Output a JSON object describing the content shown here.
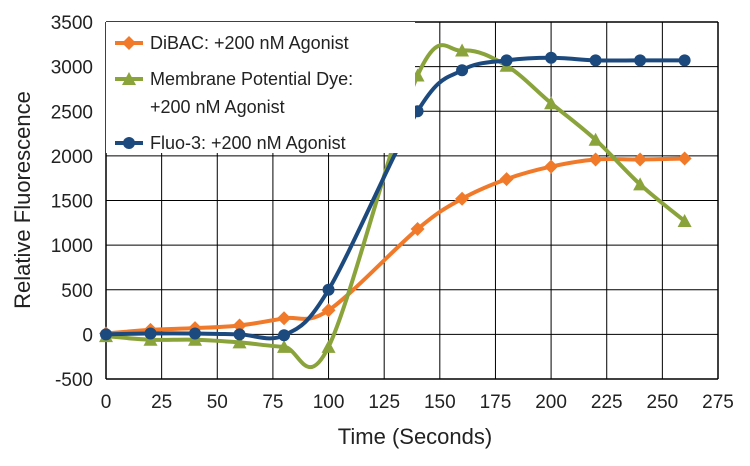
{
  "chart_data": {
    "type": "line",
    "xlabel": "Time (Seconds)",
    "ylabel": "Relative Fluorescence",
    "xlim": [
      0,
      275
    ],
    "ylim": [
      -500,
      3500
    ],
    "x_ticks": [
      "0",
      "25",
      "50",
      "75",
      "100",
      "125",
      "150",
      "175",
      "200",
      "225",
      "250",
      "275"
    ],
    "y_ticks": [
      "3500",
      "3000",
      "2500",
      "2000",
      "1500",
      "1000",
      "500",
      "0",
      "-500"
    ],
    "grid": true,
    "legend_position": "top-left",
    "series": [
      {
        "name": "DiBAC: +200 nM Agonist",
        "legend_lines": [
          "DiBAC: +200 nM Agonist"
        ],
        "color": "#f07a2a",
        "marker": "diamond",
        "x": [
          0,
          20,
          40,
          60,
          80,
          100,
          140,
          160,
          180,
          200,
          220,
          240,
          260
        ],
        "y": [
          10,
          50,
          70,
          100,
          180,
          270,
          1180,
          1520,
          1740,
          1880,
          1960,
          1960,
          1970
        ]
      },
      {
        "name": "Membrane Potential Dye: +200 nM Agonist",
        "legend_lines": [
          "Membrane Potential Dye:",
          "+200 nM Agonist"
        ],
        "color": "#8aa33b",
        "marker": "triangle",
        "x": [
          0,
          20,
          40,
          60,
          80,
          100,
          140,
          160,
          180,
          200,
          220,
          240,
          260
        ],
        "y": [
          -20,
          -60,
          -60,
          -90,
          -140,
          -140,
          2900,
          3180,
          3010,
          2590,
          2180,
          1680,
          1270
        ]
      },
      {
        "name": "Fluo-3: +200 nM Agonist",
        "legend_lines": [
          "Fluo-3: +200 nM Agonist"
        ],
        "color": "#1c4a7e",
        "marker": "circle",
        "x": [
          0,
          20,
          40,
          60,
          80,
          100,
          140,
          160,
          180,
          200,
          220,
          240,
          260
        ],
        "y": [
          0,
          10,
          10,
          0,
          -10,
          500,
          2500,
          2960,
          3070,
          3100,
          3070,
          3070,
          3070
        ]
      }
    ]
  }
}
